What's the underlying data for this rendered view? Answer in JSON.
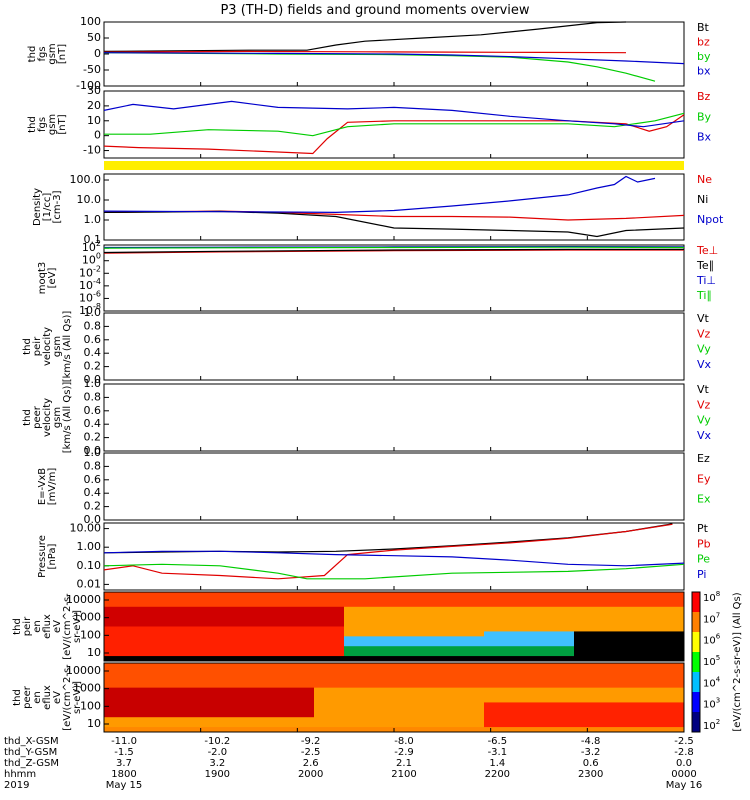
{
  "title": "P3 (TH-D) fields and ground moments overview",
  "colors": {
    "black": "#000000",
    "red": "#e00000",
    "green": "#00cc00",
    "blue": "#0000cc",
    "yellow": "#ffee00"
  },
  "chart_data": [
    {
      "type": "line",
      "ylabel": [
        "thd",
        "fgs",
        "gsm",
        "[nT]"
      ],
      "yticks": [
        "100",
        "50",
        "0",
        "-50",
        "-100"
      ],
      "ylim": [
        -100,
        100
      ],
      "legend": [
        "Bt",
        "bz",
        "by",
        "bx"
      ],
      "series": [
        {
          "name": "Bt",
          "color": "black",
          "x": [
            0,
            0.25,
            0.35,
            0.4,
            0.45,
            0.55,
            0.65,
            0.75,
            0.85,
            0.9
          ],
          "y": [
            8,
            12,
            12,
            28,
            40,
            50,
            60,
            78,
            98,
            110
          ]
        },
        {
          "name": "bz",
          "color": "red",
          "x": [
            0,
            0.25,
            0.45,
            0.6,
            0.75,
            0.9
          ],
          "y": [
            6,
            8,
            7,
            6,
            5,
            4
          ]
        },
        {
          "name": "by",
          "color": "green",
          "x": [
            0,
            0.3,
            0.5,
            0.6,
            0.7,
            0.8,
            0.85,
            0.9,
            0.95
          ],
          "y": [
            4,
            0,
            -2,
            -5,
            -10,
            -25,
            -40,
            -60,
            -85
          ]
        },
        {
          "name": "bx",
          "color": "blue",
          "x": [
            0,
            0.3,
            0.5,
            0.6,
            0.7,
            0.8,
            0.9,
            1.0
          ],
          "y": [
            4,
            2,
            0,
            -3,
            -8,
            -15,
            -22,
            -30
          ]
        }
      ]
    },
    {
      "type": "line",
      "ylabel": [
        "thd",
        "fgs",
        "gsm",
        "[nT]"
      ],
      "yticks": [
        "30",
        "20",
        "10",
        "0",
        "-10"
      ],
      "ylim": [
        -15,
        30
      ],
      "legend": [
        "Bz",
        "By",
        "Bx"
      ],
      "series": [
        {
          "name": "Bz",
          "color": "red",
          "x": [
            0,
            0.06,
            0.18,
            0.36,
            0.385,
            0.42,
            0.5,
            0.6,
            0.7,
            0.8,
            0.9,
            0.94,
            0.97,
            1.0
          ],
          "y": [
            -7,
            -8,
            -9,
            -12,
            -2,
            9,
            10,
            10,
            10,
            10,
            8,
            3,
            6,
            14
          ]
        },
        {
          "name": "By",
          "color": "green",
          "x": [
            0,
            0.08,
            0.18,
            0.3,
            0.36,
            0.42,
            0.5,
            0.6,
            0.7,
            0.8,
            0.88,
            0.95,
            1.0
          ],
          "y": [
            1,
            1,
            4,
            3,
            0,
            6,
            8,
            8,
            8,
            8,
            6,
            10,
            15
          ]
        },
        {
          "name": "Bx",
          "color": "blue",
          "x": [
            0,
            0.05,
            0.12,
            0.22,
            0.3,
            0.42,
            0.5,
            0.6,
            0.7,
            0.8,
            0.88,
            0.93,
            1.0
          ],
          "y": [
            17,
            21,
            18,
            23,
            19,
            18,
            19,
            17,
            13,
            10,
            8,
            6,
            10
          ]
        }
      ]
    },
    {
      "type": "line",
      "log": true,
      "ylabel": [
        "Density",
        "[1/cc]",
        "[cm-3]"
      ],
      "yticks": [
        "100.0",
        "10.0",
        "1.0",
        "0.1"
      ],
      "ylim": [
        0.1,
        200
      ],
      "legend": [
        "Ne",
        "Ni",
        "Npot"
      ],
      "series": [
        {
          "name": "Ne",
          "color": "red",
          "x": [
            0,
            0.1,
            0.2,
            0.3,
            0.4,
            0.5,
            0.6,
            0.7,
            0.8,
            0.9,
            1.0
          ],
          "y": [
            2.4,
            2.6,
            2.8,
            2.4,
            1.9,
            1.5,
            1.5,
            1.4,
            1.0,
            1.2,
            1.7
          ]
        },
        {
          "name": "Ni",
          "color": "black",
          "x": [
            0,
            0.1,
            0.2,
            0.3,
            0.4,
            0.5,
            0.6,
            0.7,
            0.8,
            0.85,
            0.9,
            1.0
          ],
          "y": [
            2.4,
            2.5,
            2.7,
            2.2,
            1.5,
            0.4,
            0.35,
            0.3,
            0.25,
            0.15,
            0.3,
            0.4
          ]
        },
        {
          "name": "Npot",
          "color": "blue",
          "x": [
            0,
            0.2,
            0.4,
            0.5,
            0.6,
            0.7,
            0.8,
            0.85,
            0.88,
            0.9,
            0.92,
            0.95
          ],
          "y": [
            2.8,
            2.6,
            2.4,
            3.0,
            5,
            9,
            18,
            40,
            60,
            150,
            80,
            120
          ]
        }
      ]
    },
    {
      "type": "line",
      "log": true,
      "ylabel": [
        "moqt3",
        "[eV]"
      ],
      "yticks": [
        "10^2",
        "10^0",
        "10^-2",
        "10^-4",
        "10^-6",
        "10^-8"
      ],
      "ylim": [
        -8,
        2.5
      ],
      "legend": [
        "Te⊥",
        "Te∥",
        "Ti⊥",
        "Ti∥"
      ],
      "series": [
        {
          "name": "Te⊥",
          "color": "red",
          "x": [
            0,
            0.2,
            0.5,
            0.8,
            1.0
          ],
          "y": [
            1.2,
            1.4,
            1.6,
            1.7,
            1.7
          ]
        },
        {
          "name": "Te∥",
          "color": "black",
          "x": [
            0,
            0.2,
            0.5,
            0.8,
            1.0
          ],
          "y": [
            1.3,
            1.5,
            1.7,
            1.8,
            1.8
          ]
        },
        {
          "name": "Ti⊥",
          "color": "blue",
          "x": [
            0,
            0.2,
            0.5,
            0.8,
            1.0
          ],
          "y": [
            2.1,
            2.15,
            2.2,
            2.25,
            2.2
          ]
        },
        {
          "name": "Ti∥",
          "color": "green",
          "x": [
            0,
            0.2,
            0.5,
            0.8,
            1.0
          ],
          "y": [
            2.0,
            2.05,
            2.1,
            2.15,
            2.1
          ]
        }
      ]
    },
    {
      "type": "line",
      "ylabel": [
        "thd",
        "peir",
        "velocity",
        "gsm",
        "[km/s (All Qs)]"
      ],
      "yticks": [
        "1.0",
        "0.8",
        "0.6",
        "0.4",
        "0.2",
        "0.0"
      ],
      "ylim": [
        0,
        1
      ],
      "legend": [
        "Vt",
        "Vz",
        "Vy",
        "Vx"
      ],
      "series": []
    },
    {
      "type": "line",
      "ylabel": [
        "thd",
        "peer",
        "velocity",
        "gsm",
        "[km/s (All Qs)]"
      ],
      "yticks": [
        "1.0",
        "0.8",
        "0.6",
        "0.4",
        "0.2",
        "0.0"
      ],
      "ylim": [
        0,
        1
      ],
      "legend": [
        "Vt",
        "Vz",
        "Vy",
        "Vx"
      ],
      "series": []
    },
    {
      "type": "line",
      "ylabel": [
        "E=-VxB",
        "[mV/m]"
      ],
      "yticks": [
        "1.0",
        "0.8",
        "0.6",
        "0.4",
        "0.2",
        "0.0"
      ],
      "ylim": [
        0,
        1
      ],
      "legend": [
        "Ez",
        "Ey",
        "Ex"
      ],
      "series": []
    },
    {
      "type": "line",
      "log": true,
      "ylabel": [
        "Pressure",
        "[nPa]"
      ],
      "yticks": [
        "10.00",
        "1.00",
        "0.10",
        "0.01"
      ],
      "ylim": [
        0.005,
        20
      ],
      "legend": [
        "Pt",
        "Pb",
        "Pe",
        "Pi"
      ],
      "series": [
        {
          "name": "Pt",
          "color": "black",
          "x": [
            0,
            0.1,
            0.2,
            0.3,
            0.4,
            0.5,
            0.6,
            0.7,
            0.8,
            0.9,
            0.98
          ],
          "y": [
            0.5,
            0.55,
            0.6,
            0.55,
            0.6,
            0.8,
            1.2,
            1.9,
            3.2,
            7,
            18
          ]
        },
        {
          "name": "Pb",
          "color": "red",
          "x": [
            0,
            0.05,
            0.1,
            0.2,
            0.3,
            0.38,
            0.42,
            0.5,
            0.6,
            0.7,
            0.8,
            0.9,
            0.98
          ],
          "y": [
            0.06,
            0.1,
            0.04,
            0.03,
            0.02,
            0.03,
            0.4,
            0.7,
            1.1,
            1.7,
            3.0,
            7,
            17
          ]
        },
        {
          "name": "Pe",
          "color": "green",
          "x": [
            0,
            0.1,
            0.2,
            0.3,
            0.35,
            0.45,
            0.6,
            0.8,
            0.9,
            1.0
          ],
          "y": [
            0.1,
            0.12,
            0.1,
            0.04,
            0.02,
            0.02,
            0.04,
            0.05,
            0.07,
            0.12
          ]
        },
        {
          "name": "Pi",
          "color": "blue",
          "x": [
            0,
            0.1,
            0.2,
            0.3,
            0.4,
            0.5,
            0.6,
            0.7,
            0.8,
            0.9,
            1.0
          ],
          "y": [
            0.5,
            0.6,
            0.6,
            0.5,
            0.4,
            0.35,
            0.3,
            0.2,
            0.12,
            0.1,
            0.14
          ]
        }
      ]
    },
    {
      "type": "heatmap",
      "ylabel": [
        "thd",
        "peir",
        "en",
        "eflux",
        "eV",
        "[eV/(cm^2-s-",
        "sr-eV)]"
      ],
      "yticks": [
        "10000",
        "1000",
        "100",
        "10"
      ]
    },
    {
      "type": "heatmap",
      "ylabel": [
        "thd",
        "peer",
        "en",
        "eflux",
        "eV",
        "[eV/(cm^2-s-",
        "sr-eV)]"
      ],
      "yticks": [
        "10000",
        "1000",
        "100",
        "10"
      ]
    }
  ],
  "colorbar": {
    "ticks": [
      "10^8",
      "10^7",
      "10^6",
      "10^5",
      "10^4",
      "10^3",
      "10^2"
    ],
    "label": "[eV/(cm^2-s-sr-eV)] (All Qs)"
  },
  "xaxis": {
    "row_labels": [
      "thd_X-GSM",
      "thd_Y-GSM",
      "thd_Z-GSM",
      "hhmm",
      "2019"
    ],
    "columns": [
      [
        "-11.0",
        "-1.5",
        "3.7",
        "1800",
        "May 15"
      ],
      [
        "-10.2",
        "-2.0",
        "3.2",
        "1900",
        ""
      ],
      [
        "-9.2",
        "-2.5",
        "2.6",
        "2000",
        ""
      ],
      [
        "-8.0",
        "-2.9",
        "2.1",
        "2100",
        ""
      ],
      [
        "-6.5",
        "-3.1",
        "1.4",
        "2200",
        ""
      ],
      [
        "-4.8",
        "-3.2",
        "0.6",
        "2300",
        ""
      ],
      [
        "-2.5",
        "-2.8",
        "0.0",
        "0000",
        "May 16"
      ]
    ]
  }
}
